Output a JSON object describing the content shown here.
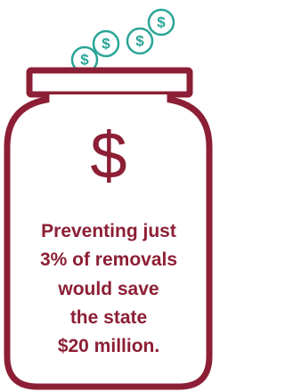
{
  "coins": [
    "$",
    "$",
    "$",
    "$"
  ],
  "icon": "$",
  "message": [
    "Preventing just",
    "3% of removals",
    "would save",
    "the state",
    "$20 million."
  ]
}
